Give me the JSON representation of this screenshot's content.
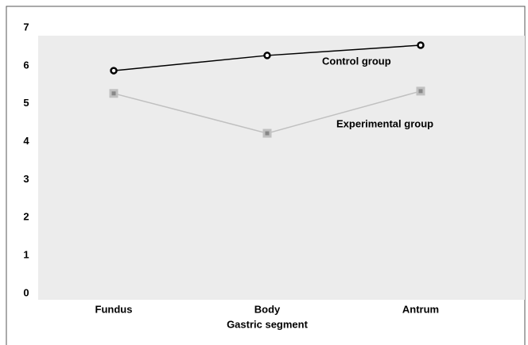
{
  "chart_data": {
    "type": "line",
    "xlabel": "Gastric segment",
    "categories": [
      "Fundus",
      "Body",
      "Antrum"
    ],
    "series": [
      {
        "name": "Control group",
        "color": "#000000",
        "values": [
          5.87,
          6.27,
          6.54
        ]
      },
      {
        "name": "Experimental group",
        "color": "#c0c0c0",
        "values": [
          5.27,
          4.22,
          5.33
        ]
      }
    ],
    "ylim": [
      0,
      7
    ],
    "yticks": [
      0,
      1,
      2,
      3,
      4,
      5,
      6,
      7
    ],
    "grid": false
  }
}
